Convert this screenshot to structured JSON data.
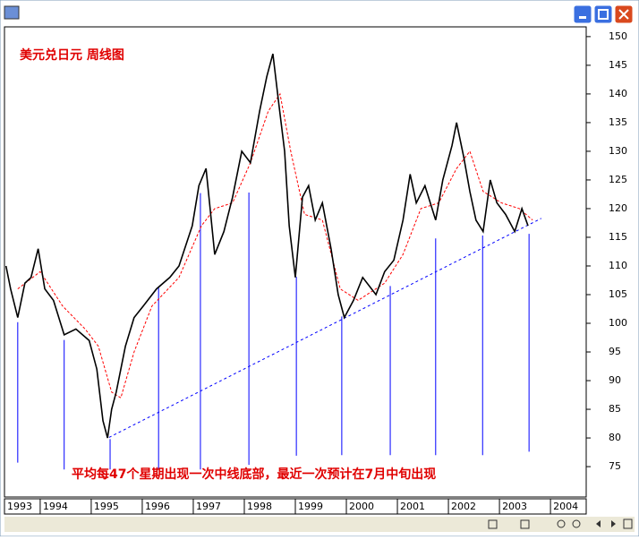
{
  "chart_data": {
    "type": "line",
    "title": "美元兑日元  周线图",
    "annotation": "平均每47个星期出现一次中线底部，最近一次预计在7月中旬出现",
    "xlim": [
      1993.3,
      2004.7
    ],
    "xticks": [
      1993,
      1994,
      1995,
      1996,
      1997,
      1998,
      1999,
      2000,
      2001,
      2002,
      2003,
      2004
    ],
    "ylim": [
      69.7,
      151.7
    ],
    "yticks": [
      75,
      80,
      85,
      90,
      95,
      100,
      105,
      110,
      115,
      120,
      125,
      130,
      135,
      140,
      145,
      150
    ],
    "series": [
      {
        "color": "#000000",
        "x": [
          1993.33,
          1993.42,
          1993.56,
          1993.7,
          1993.82,
          1993.96,
          1994.09,
          1994.26,
          1994.47,
          1994.7,
          1994.96,
          1995.11,
          1995.23,
          1995.32,
          1995.4,
          1995.49,
          1995.67,
          1995.84,
          1996.02,
          1996.28,
          1996.54,
          1996.72,
          1996.98,
          1997.11,
          1997.25,
          1997.33,
          1997.42,
          1997.6,
          1997.77,
          1997.95,
          1998.12,
          1998.3,
          1998.44,
          1998.56,
          1998.68,
          1998.79,
          1998.88,
          1999.0,
          1999.14,
          1999.26,
          1999.39,
          1999.53,
          1999.7,
          1999.84,
          1999.96,
          2000.14,
          2000.32,
          2000.58,
          2000.75,
          2000.93,
          2001.11,
          2001.25,
          2001.37,
          2001.54,
          2001.75,
          2001.89,
          2002.07,
          2002.16,
          2002.3,
          2002.42,
          2002.54,
          2002.68,
          2002.82,
          2002.95,
          2003.12,
          2003.3,
          2003.44,
          2003.56
        ],
        "values": [
          110,
          106,
          101,
          107,
          108,
          113,
          106,
          104,
          98,
          99,
          97,
          92,
          83,
          80,
          85,
          88,
          96,
          101,
          103,
          106,
          108,
          110,
          117,
          124,
          127,
          120,
          112,
          116,
          122,
          130,
          128,
          137,
          143,
          147,
          138,
          130,
          117,
          108,
          122,
          124,
          118,
          121,
          113,
          105,
          101,
          104,
          108,
          105,
          109,
          111,
          118,
          126,
          121,
          124,
          118,
          125,
          131,
          135,
          129,
          123,
          118,
          116,
          125,
          121,
          119,
          116,
          120,
          117
        ]
      },
      {
        "color": "#ff0000",
        "dashed": true,
        "x": [
          1993.56,
          1994.0,
          1994.44,
          1994.88,
          1995.14,
          1995.4,
          1995.58,
          1995.84,
          1996.19,
          1996.72,
          1997.16,
          1997.42,
          1997.77,
          1998.12,
          1998.47,
          1998.7,
          1998.91,
          1999.18,
          1999.53,
          1999.88,
          2000.23,
          2000.75,
          2001.11,
          2001.46,
          2001.81,
          2002.16,
          2002.42,
          2002.68,
          2003.04,
          2003.39,
          2003.65
        ],
        "values": [
          106,
          109,
          103,
          99,
          96,
          88,
          87,
          95,
          103,
          108,
          117,
          120,
          121,
          128,
          137,
          140,
          130,
          119,
          118,
          106,
          104,
          107,
          112,
          120,
          121,
          127,
          130,
          123,
          121,
          120,
          118
        ]
      }
    ],
    "trendline": {
      "color": "#0000ff",
      "x": [
        1995.35,
        2003.82
      ],
      "values": [
        80.1,
        118.3
      ]
    },
    "cycle_lows": {
      "color": "#0000ff",
      "x": [
        1993.56,
        1994.47,
        1995.37,
        1996.32,
        1997.14,
        1998.09,
        1999.02,
        1999.91,
        2000.86,
        2001.75,
        2002.67,
        2003.58
      ],
      "top": [
        100.2,
        97.1,
        79.8,
        106.2,
        122.7,
        122.8,
        108.1,
        101.2,
        106.5,
        114.8,
        115.3,
        115.6
      ],
      "bottom": [
        75.7,
        74.5,
        74.5,
        74.5,
        74.5,
        75.3,
        76.9,
        77.0,
        77.0,
        77.0,
        77.0,
        77.6
      ]
    }
  }
}
